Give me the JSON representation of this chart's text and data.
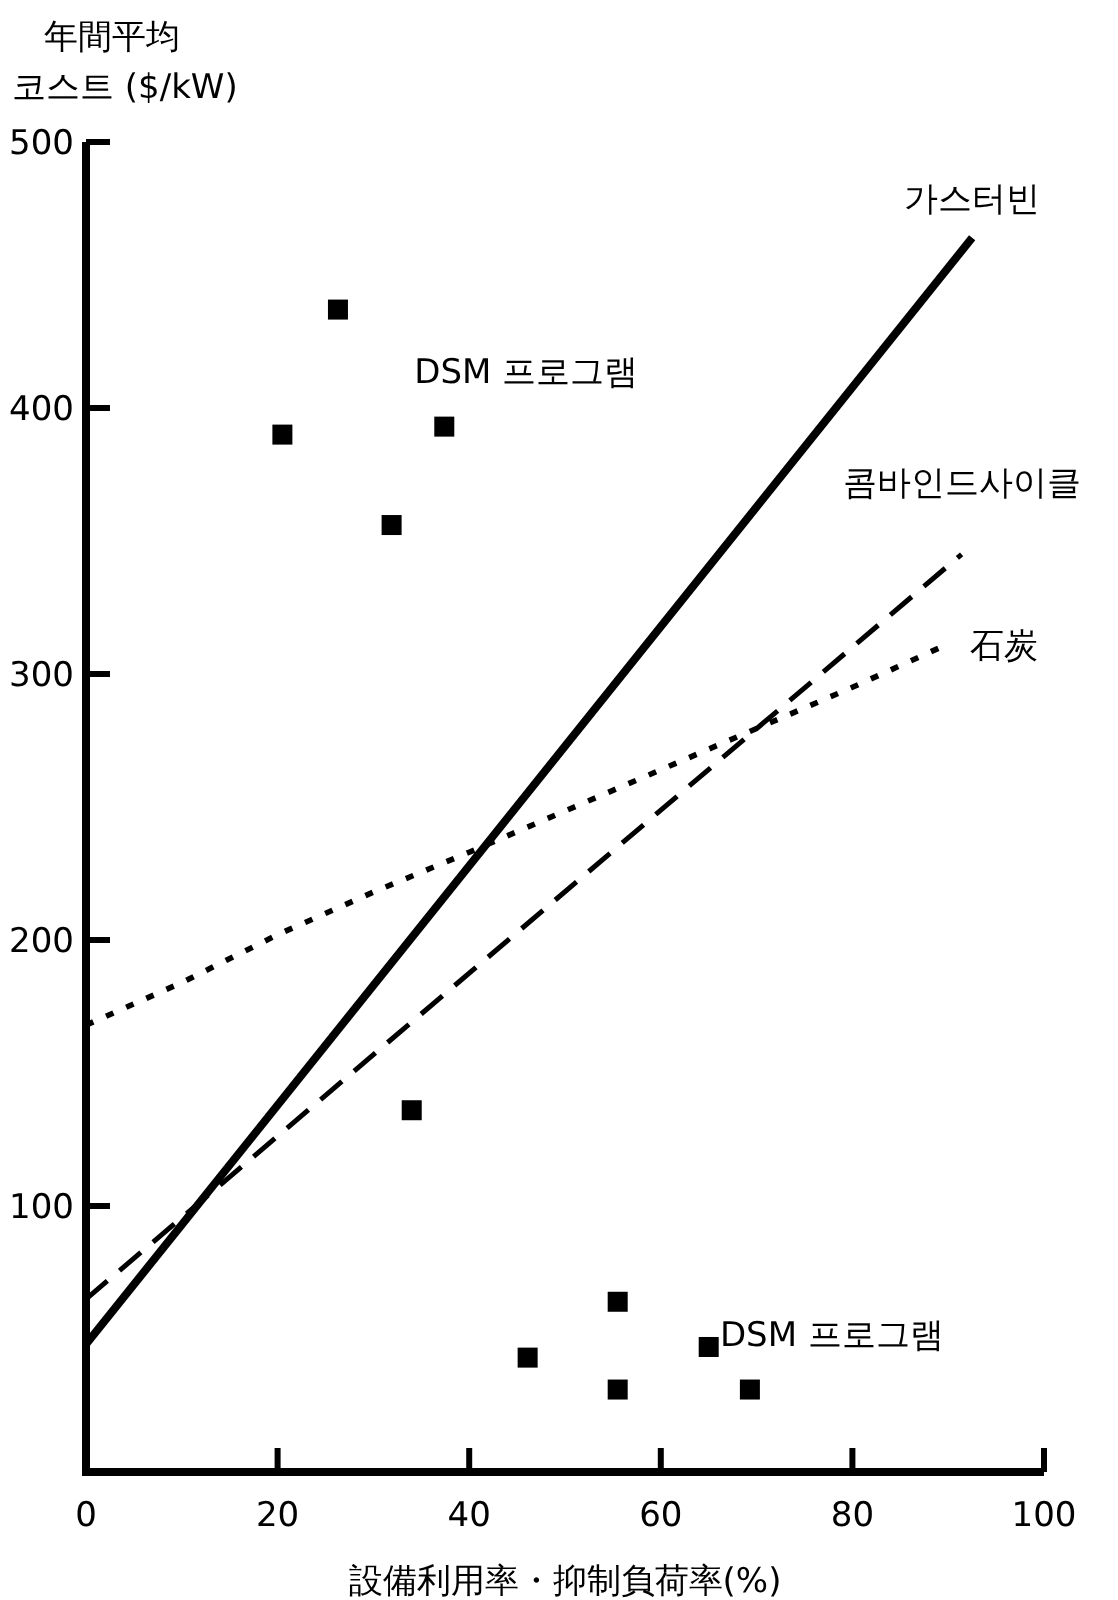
{
  "chart_data": {
    "type": "line",
    "ylabel": "年間平均\n코스트 ($/kW)",
    "xlabel": "設備利用率・抑制負荷率(%)",
    "xlim": [
      0,
      100
    ],
    "ylim": [
      0,
      500
    ],
    "xticks": [
      0,
      20,
      40,
      60,
      80,
      100
    ],
    "yticks": [
      100,
      200,
      300,
      400,
      500
    ],
    "grid": false,
    "series": [
      {
        "color": "#000000",
        "line_style": "solid",
        "x": [
          0,
          92.5
        ],
        "values": [
          48,
          464
        ]
      },
      {
        "color": "#000000",
        "line_style": "dashed",
        "x": [
          0,
          91.4
        ],
        "values": [
          65,
          345
        ]
      },
      {
        "color": "#000000",
        "line_style": "dotted",
        "x": [
          0,
          10,
          20,
          30,
          40,
          60,
          80,
          89.8
        ],
        "values": [
          168,
          184,
          202,
          218,
          233,
          264,
          295,
          311
        ]
      },
      {
        "type": "scatter",
        "name": "DSM 프로그램",
        "color": "#000000",
        "marker": "square",
        "x": [
          20.5,
          26.3,
          37.4,
          31.9
        ],
        "values": [
          390,
          437,
          393,
          356
        ]
      },
      {
        "type": "scatter",
        "name": "DSM 프로그램",
        "color": "#000000",
        "marker": "square",
        "x": [
          34.0,
          46.1,
          55.5,
          55.5,
          65.0,
          69.3
        ],
        "values": [
          136,
          43,
          64,
          31,
          47,
          31
        ]
      }
    ],
    "annotations": [
      {
        "text": "가스터빈",
        "x": 92.5,
        "y": 464
      },
      {
        "text": "콤바인드사이클",
        "x": 91.4,
        "y": 345
      },
      {
        "text": "石炭",
        "x": 89.8,
        "y": 311
      }
    ]
  }
}
